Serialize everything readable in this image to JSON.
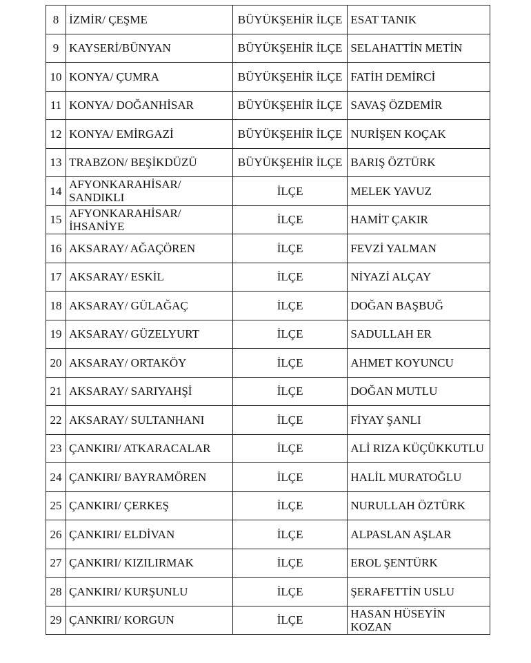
{
  "rows": [
    {
      "no": "8",
      "location": "İZMİR/ ÇEŞME",
      "type": "BÜYÜKŞEHİR İLÇE",
      "name": "ESAT TANIK"
    },
    {
      "no": "9",
      "location": "KAYSERİ/BÜNYAN",
      "type": "BÜYÜKŞEHİR İLÇE",
      "name": "SELAHATTİN METİN"
    },
    {
      "no": "10",
      "location": "KONYA/ ÇUMRA",
      "type": "BÜYÜKŞEHİR İLÇE",
      "name": "FATİH DEMİRCİ"
    },
    {
      "no": "11",
      "location": "KONYA/ DOĞANHİSAR",
      "type": "BÜYÜKŞEHİR İLÇE",
      "name": "SAVAŞ ÖZDEMİR"
    },
    {
      "no": "12",
      "location": "KONYA/ EMİRGAZİ",
      "type": "BÜYÜKŞEHİR İLÇE",
      "name": "NURİŞEN KOÇAK"
    },
    {
      "no": "13",
      "location": "TRABZON/ BEŞİKDÜZÜ",
      "type": "BÜYÜKŞEHİR İLÇE",
      "name": "BARIŞ ÖZTÜRK"
    },
    {
      "no": "14",
      "location": "AFYONKARAHİSAR/ SANDIKLI",
      "type": "İLÇE",
      "name": "MELEK YAVUZ"
    },
    {
      "no": "15",
      "location": "AFYONKARAHİSAR/ İHSANİYE",
      "type": "İLÇE",
      "name": "HAMİT ÇAKIR"
    },
    {
      "no": "16",
      "location": "AKSARAY/ AĞAÇÖREN",
      "type": "İLÇE",
      "name": "FEVZİ YALMAN"
    },
    {
      "no": "17",
      "location": "AKSARAY/ ESKİL",
      "type": "İLÇE",
      "name": "NİYAZİ ALÇAY"
    },
    {
      "no": "18",
      "location": "AKSARAY/ GÜLAĞAÇ",
      "type": "İLÇE",
      "name": "DOĞAN BAŞBUĞ"
    },
    {
      "no": "19",
      "location": "AKSARAY/ GÜZELYURT",
      "type": "İLÇE",
      "name": "SADULLAH ER"
    },
    {
      "no": "20",
      "location": "AKSARAY/ ORTAKÖY",
      "type": "İLÇE",
      "name": "AHMET KOYUNCU"
    },
    {
      "no": "21",
      "location": "AKSARAY/ SARIYAHŞİ",
      "type": "İLÇE",
      "name": "DOĞAN MUTLU"
    },
    {
      "no": "22",
      "location": "AKSARAY/ SULTANHANI",
      "type": "İLÇE",
      "name": "FİYAY ŞANLI"
    },
    {
      "no": "23",
      "location": "ÇANKIRI/ ATKARACALAR",
      "type": "İLÇE",
      "name": "ALİ RIZA KÜÇÜKKUTLU"
    },
    {
      "no": "24",
      "location": "ÇANKIRI/ BAYRAMÖREN",
      "type": "İLÇE",
      "name": "HALİL MURATOĞLU"
    },
    {
      "no": "25",
      "location": "ÇANKIRI/ ÇERKEŞ",
      "type": "İLÇE",
      "name": "NURULLAH ÖZTÜRK"
    },
    {
      "no": "26",
      "location": "ÇANKIRI/ ELDİVAN",
      "type": "İLÇE",
      "name": "ALPASLAN AŞLAR"
    },
    {
      "no": "27",
      "location": "ÇANKIRI/ KIZILIRMAK",
      "type": "İLÇE",
      "name": "EROL ŞENTÜRK"
    },
    {
      "no": "28",
      "location": "ÇANKIRI/ KURŞUNLU",
      "type": "İLÇE",
      "name": "ŞERAFETTİN USLU"
    },
    {
      "no": "29",
      "location": "ÇANKIRI/ KORGUN",
      "type": "İLÇE",
      "name": "HASAN HÜSEYİN KOZAN"
    }
  ]
}
